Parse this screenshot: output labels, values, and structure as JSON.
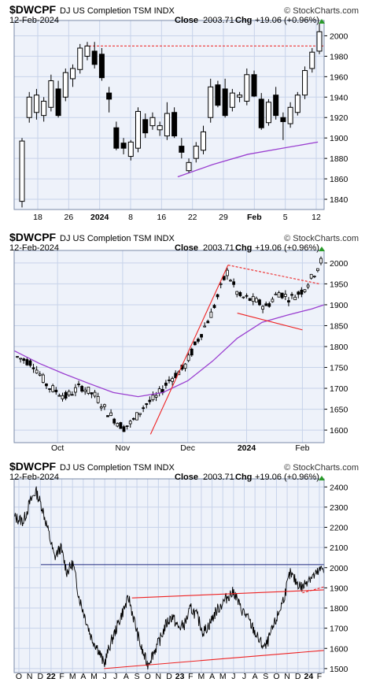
{
  "colors": {
    "plot_bg": "#eef2fa",
    "grid": "#c7d3ea",
    "frame": "#7a8aa8",
    "ma": "#9a3fd0",
    "trend": "#ee2222",
    "resistance": "#1f2a80",
    "up_arrow": "#2a9a2a"
  },
  "charts": [
    {
      "id": "daily-short",
      "header": {
        "symbol": "$DWCPF",
        "name": "DJ US Completion TSM INDX",
        "date": "12-Feb-2024",
        "close_label": "Close",
        "close_value": "2003.71",
        "chg_label": "Chg",
        "chg_value": "+19.06 (+0.96%)",
        "brand": "© StockCharts.com"
      },
      "y_ticks": [
        "1840",
        "1860",
        "1880",
        "1900",
        "1920",
        "1940",
        "1960",
        "1980",
        "2000"
      ],
      "x_ticks": [
        {
          "label": "18",
          "bold": false
        },
        {
          "label": "26",
          "bold": false
        },
        {
          "label": "2024",
          "bold": true
        },
        {
          "label": "8",
          "bold": false
        },
        {
          "label": "16",
          "bold": false
        },
        {
          "label": "22",
          "bold": false
        },
        {
          "label": "29",
          "bold": false
        },
        {
          "label": "Feb",
          "bold": true
        },
        {
          "label": "5",
          "bold": false
        },
        {
          "label": "12",
          "bold": false
        }
      ]
    },
    {
      "id": "daily-medium",
      "header": {
        "symbol": "$DWCPF",
        "name": "DJ US Completion TSM INDX",
        "date": "12-Feb-2024",
        "close_label": "Close",
        "close_value": "2003.71",
        "chg_label": "Chg",
        "chg_value": "+19.06 (+0.96%)",
        "brand": "© StockCharts.com"
      },
      "y_ticks": [
        "1600",
        "1650",
        "1700",
        "1750",
        "1800",
        "1850",
        "1900",
        "1950",
        "2000"
      ],
      "x_ticks": [
        {
          "label": "Oct",
          "bold": false
        },
        {
          "label": "Nov",
          "bold": false
        },
        {
          "label": "Dec",
          "bold": false
        },
        {
          "label": "2024",
          "bold": true
        },
        {
          "label": "Feb",
          "bold": false
        }
      ]
    },
    {
      "id": "long-term",
      "header": {
        "symbol": "$DWCPF",
        "name": "DJ US Completion TSM INDX",
        "date": "12-Feb-2024",
        "close_label": "Close",
        "close_value": "2003.71",
        "chg_label": "Chg",
        "chg_value": "+19.06 (+0.96%)",
        "brand": "© StockCharts.com"
      },
      "y_ticks": [
        "1500",
        "1600",
        "1700",
        "1800",
        "1900",
        "2000",
        "2100",
        "2200",
        "2300",
        "2400"
      ],
      "x_ticks": [
        {
          "label": "O",
          "bold": false
        },
        {
          "label": "N",
          "bold": false
        },
        {
          "label": "D",
          "bold": false
        },
        {
          "label": "22",
          "bold": true
        },
        {
          "label": "F",
          "bold": false
        },
        {
          "label": "M",
          "bold": false
        },
        {
          "label": "A",
          "bold": false
        },
        {
          "label": "M",
          "bold": false
        },
        {
          "label": "J",
          "bold": false
        },
        {
          "label": "J",
          "bold": false
        },
        {
          "label": "A",
          "bold": false
        },
        {
          "label": "S",
          "bold": false
        },
        {
          "label": "O",
          "bold": false
        },
        {
          "label": "N",
          "bold": false
        },
        {
          "label": "D",
          "bold": false
        },
        {
          "label": "23",
          "bold": true
        },
        {
          "label": "F",
          "bold": false
        },
        {
          "label": "M",
          "bold": false
        },
        {
          "label": "A",
          "bold": false
        },
        {
          "label": "M",
          "bold": false
        },
        {
          "label": "J",
          "bold": false
        },
        {
          "label": "J",
          "bold": false
        },
        {
          "label": "A",
          "bold": false
        },
        {
          "label": "S",
          "bold": false
        },
        {
          "label": "O",
          "bold": false
        },
        {
          "label": "N",
          "bold": false
        },
        {
          "label": "D",
          "bold": false
        },
        {
          "label": "24",
          "bold": true
        },
        {
          "label": "F",
          "bold": false
        }
      ]
    }
  ],
  "chart_data": [
    {
      "type": "candlestick",
      "ylim": [
        1830,
        2015
      ],
      "grid": true,
      "moving_average": [
        {
          "bar": 28,
          "value": 1862
        },
        {
          "bar": 34,
          "value": 1874
        },
        {
          "bar": 40,
          "value": 1884
        },
        {
          "bar": 46,
          "value": 1890
        },
        {
          "bar": 52,
          "value": 1896
        }
      ],
      "horizontal_line": 1990,
      "ohlc": [
        {
          "o": 1838,
          "h": 1900,
          "l": 1832,
          "c": 1897
        },
        {
          "o": 1920,
          "h": 1945,
          "l": 1915,
          "c": 1940
        },
        {
          "o": 1925,
          "h": 1948,
          "l": 1918,
          "c": 1942
        },
        {
          "o": 1922,
          "h": 1940,
          "l": 1916,
          "c": 1936
        },
        {
          "o": 1930,
          "h": 1962,
          "l": 1926,
          "c": 1956
        },
        {
          "o": 1948,
          "h": 1956,
          "l": 1920,
          "c": 1922
        },
        {
          "o": 1940,
          "h": 1968,
          "l": 1936,
          "c": 1964
        },
        {
          "o": 1958,
          "h": 1972,
          "l": 1950,
          "c": 1968
        },
        {
          "o": 1967,
          "h": 1992,
          "l": 1963,
          "c": 1988
        },
        {
          "o": 1980,
          "h": 1994,
          "l": 1976,
          "c": 1990
        },
        {
          "o": 1985,
          "h": 1994,
          "l": 1968,
          "c": 1972
        },
        {
          "o": 1982,
          "h": 1988,
          "l": 1956,
          "c": 1959
        },
        {
          "o": 1944,
          "h": 1950,
          "l": 1925,
          "c": 1938
        },
        {
          "o": 1910,
          "h": 1916,
          "l": 1888,
          "c": 1890
        },
        {
          "o": 1895,
          "h": 1900,
          "l": 1884,
          "c": 1890
        },
        {
          "o": 1882,
          "h": 1898,
          "l": 1878,
          "c": 1896
        },
        {
          "o": 1890,
          "h": 1930,
          "l": 1886,
          "c": 1926
        },
        {
          "o": 1918,
          "h": 1924,
          "l": 1900,
          "c": 1905
        },
        {
          "o": 1912,
          "h": 1925,
          "l": 1908,
          "c": 1920
        },
        {
          "o": 1908,
          "h": 1916,
          "l": 1902,
          "c": 1912
        },
        {
          "o": 1902,
          "h": 1935,
          "l": 1898,
          "c": 1924
        },
        {
          "o": 1925,
          "h": 1930,
          "l": 1900,
          "c": 1902
        },
        {
          "o": 1892,
          "h": 1900,
          "l": 1880,
          "c": 1886
        },
        {
          "o": 1868,
          "h": 1880,
          "l": 1866,
          "c": 1876
        },
        {
          "o": 1880,
          "h": 1896,
          "l": 1876,
          "c": 1892
        },
        {
          "o": 1888,
          "h": 1912,
          "l": 1884,
          "c": 1906
        },
        {
          "o": 1920,
          "h": 1958,
          "l": 1915,
          "c": 1950
        },
        {
          "o": 1952,
          "h": 1956,
          "l": 1930,
          "c": 1932
        },
        {
          "o": 1948,
          "h": 1958,
          "l": 1920,
          "c": 1922
        },
        {
          "o": 1930,
          "h": 1948,
          "l": 1926,
          "c": 1944
        },
        {
          "o": 1940,
          "h": 1945,
          "l": 1935,
          "c": 1942
        },
        {
          "o": 1936,
          "h": 1968,
          "l": 1932,
          "c": 1962
        },
        {
          "o": 1962,
          "h": 1966,
          "l": 1940,
          "c": 1941
        },
        {
          "o": 1938,
          "h": 1944,
          "l": 1908,
          "c": 1910
        },
        {
          "o": 1915,
          "h": 1938,
          "l": 1912,
          "c": 1935
        },
        {
          "o": 1942,
          "h": 1950,
          "l": 1918,
          "c": 1922
        },
        {
          "o": 1920,
          "h": 1925,
          "l": 1898,
          "c": 1916
        },
        {
          "o": 1914,
          "h": 1935,
          "l": 1910,
          "c": 1930
        },
        {
          "o": 1925,
          "h": 1945,
          "l": 1922,
          "c": 1942
        },
        {
          "o": 1942,
          "h": 1970,
          "l": 1938,
          "c": 1966
        },
        {
          "o": 1968,
          "h": 1988,
          "l": 1964,
          "c": 1984
        },
        {
          "o": 1985,
          "h": 2012,
          "l": 1982,
          "c": 2004
        }
      ]
    },
    {
      "type": "candlestick",
      "ylim": [
        1570,
        2030
      ],
      "grid": true,
      "moving_average": [
        {
          "t": 0.0,
          "value": 1790
        },
        {
          "t": 0.08,
          "value": 1760
        },
        {
          "t": 0.16,
          "value": 1735
        },
        {
          "t": 0.24,
          "value": 1712
        },
        {
          "t": 0.32,
          "value": 1690
        },
        {
          "t": 0.4,
          "value": 1680
        },
        {
          "t": 0.48,
          "value": 1690
        },
        {
          "t": 0.56,
          "value": 1718
        },
        {
          "t": 0.64,
          "value": 1765
        },
        {
          "t": 0.72,
          "value": 1820
        },
        {
          "t": 0.8,
          "value": 1858
        },
        {
          "t": 0.88,
          "value": 1875
        },
        {
          "t": 0.96,
          "value": 1890
        },
        {
          "t": 1.0,
          "value": 1900
        }
      ],
      "trendlines": [
        {
          "from": {
            "t": 0.44,
            "value": 1590
          },
          "to": {
            "t": 0.69,
            "value": 1995
          },
          "dashed": false
        },
        {
          "from": {
            "t": 0.69,
            "value": 1995
          },
          "to": {
            "t": 0.985,
            "value": 1950
          },
          "dashed": true
        },
        {
          "from": {
            "t": 0.72,
            "value": 1880
          },
          "to": {
            "t": 0.93,
            "value": 1840
          },
          "dashed": false
        }
      ],
      "series_shape": [
        {
          "t": 0.0,
          "value": 1775
        },
        {
          "t": 0.05,
          "value": 1760
        },
        {
          "t": 0.1,
          "value": 1705
        },
        {
          "t": 0.16,
          "value": 1680
        },
        {
          "t": 0.21,
          "value": 1705
        },
        {
          "t": 0.26,
          "value": 1680
        },
        {
          "t": 0.3,
          "value": 1640
        },
        {
          "t": 0.35,
          "value": 1605
        },
        {
          "t": 0.38,
          "value": 1620
        },
        {
          "t": 0.42,
          "value": 1660
        },
        {
          "t": 0.46,
          "value": 1680
        },
        {
          "t": 0.5,
          "value": 1720
        },
        {
          "t": 0.55,
          "value": 1750
        },
        {
          "t": 0.59,
          "value": 1810
        },
        {
          "t": 0.64,
          "value": 1880
        },
        {
          "t": 0.69,
          "value": 1980
        },
        {
          "t": 0.73,
          "value": 1920
        },
        {
          "t": 0.78,
          "value": 1910
        },
        {
          "t": 0.82,
          "value": 1895
        },
        {
          "t": 0.86,
          "value": 1930
        },
        {
          "t": 0.9,
          "value": 1915
        },
        {
          "t": 0.94,
          "value": 1935
        },
        {
          "t": 0.97,
          "value": 1965
        },
        {
          "t": 1.0,
          "value": 2004
        }
      ]
    },
    {
      "type": "line",
      "ylim": [
        1480,
        2440
      ],
      "grid": true,
      "horizontal_line": 2015,
      "trendlines": [
        {
          "from": {
            "t": 0.38,
            "value": 1850
          },
          "to": {
            "t": 1.0,
            "value": 1890
          }
        },
        {
          "from": {
            "t": 0.29,
            "value": 1500
          },
          "to": {
            "t": 1.0,
            "value": 1590
          }
        }
      ],
      "moving_average": [
        {
          "t": 0.93,
          "value": 1875
        },
        {
          "t": 1.0,
          "value": 1905
        }
      ],
      "series_shape": [
        {
          "t": 0.0,
          "value": 2250
        },
        {
          "t": 0.03,
          "value": 2230
        },
        {
          "t": 0.05,
          "value": 2320
        },
        {
          "t": 0.07,
          "value": 2380
        },
        {
          "t": 0.09,
          "value": 2300
        },
        {
          "t": 0.11,
          "value": 2180
        },
        {
          "t": 0.13,
          "value": 2050
        },
        {
          "t": 0.15,
          "value": 2100
        },
        {
          "t": 0.17,
          "value": 1980
        },
        {
          "t": 0.19,
          "value": 2020
        },
        {
          "t": 0.21,
          "value": 1850
        },
        {
          "t": 0.23,
          "value": 1750
        },
        {
          "t": 0.25,
          "value": 1650
        },
        {
          "t": 0.27,
          "value": 1600
        },
        {
          "t": 0.29,
          "value": 1520
        },
        {
          "t": 0.31,
          "value": 1620
        },
        {
          "t": 0.33,
          "value": 1700
        },
        {
          "t": 0.35,
          "value": 1780
        },
        {
          "t": 0.37,
          "value": 1850
        },
        {
          "t": 0.39,
          "value": 1720
        },
        {
          "t": 0.41,
          "value": 1600
        },
        {
          "t": 0.43,
          "value": 1520
        },
        {
          "t": 0.45,
          "value": 1580
        },
        {
          "t": 0.47,
          "value": 1640
        },
        {
          "t": 0.49,
          "value": 1720
        },
        {
          "t": 0.51,
          "value": 1760
        },
        {
          "t": 0.53,
          "value": 1700
        },
        {
          "t": 0.55,
          "value": 1720
        },
        {
          "t": 0.57,
          "value": 1800
        },
        {
          "t": 0.59,
          "value": 1760
        },
        {
          "t": 0.61,
          "value": 1680
        },
        {
          "t": 0.63,
          "value": 1720
        },
        {
          "t": 0.65,
          "value": 1780
        },
        {
          "t": 0.67,
          "value": 1820
        },
        {
          "t": 0.69,
          "value": 1860
        },
        {
          "t": 0.71,
          "value": 1880
        },
        {
          "t": 0.73,
          "value": 1800
        },
        {
          "t": 0.75,
          "value": 1760
        },
        {
          "t": 0.77,
          "value": 1700
        },
        {
          "t": 0.79,
          "value": 1640
        },
        {
          "t": 0.81,
          "value": 1600
        },
        {
          "t": 0.83,
          "value": 1680
        },
        {
          "t": 0.85,
          "value": 1760
        },
        {
          "t": 0.87,
          "value": 1850
        },
        {
          "t": 0.89,
          "value": 1970
        },
        {
          "t": 0.91,
          "value": 1930
        },
        {
          "t": 0.93,
          "value": 1900
        },
        {
          "t": 0.95,
          "value": 1950
        },
        {
          "t": 0.97,
          "value": 1960
        },
        {
          "t": 1.0,
          "value": 2004
        }
      ]
    }
  ]
}
